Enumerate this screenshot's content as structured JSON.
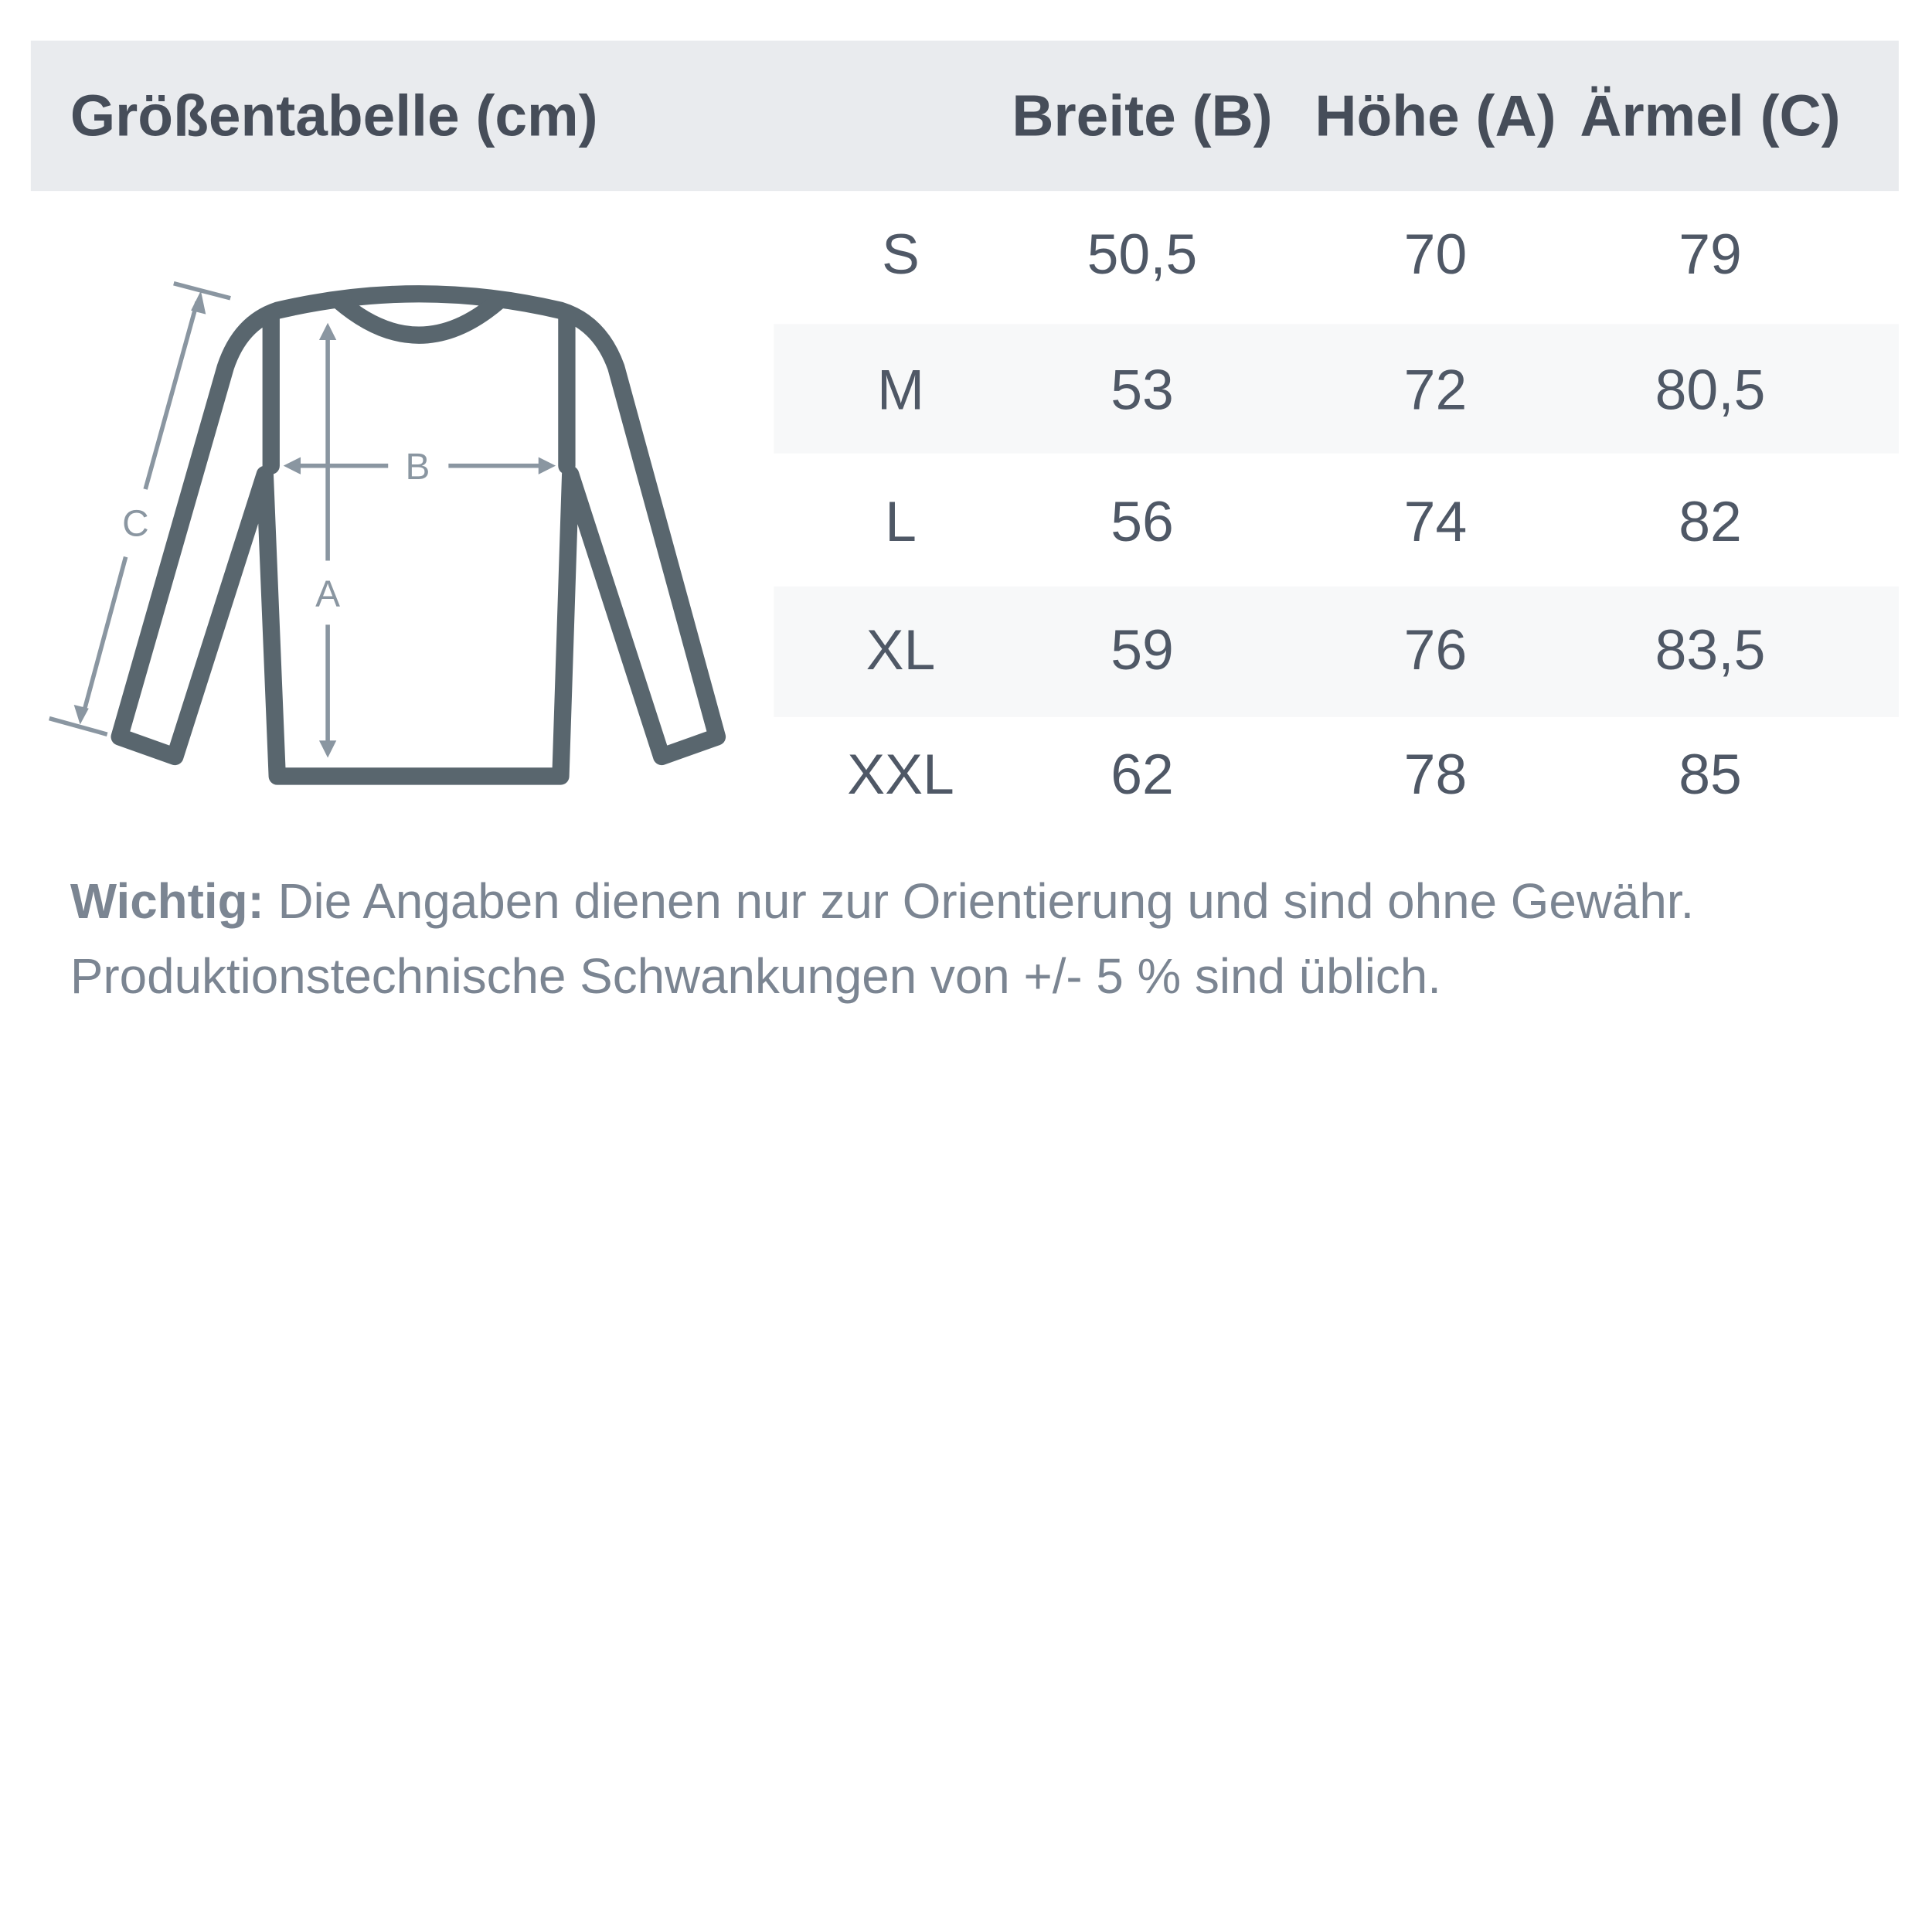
{
  "title": "Größentabelle (cm)",
  "columns": [
    "Breite (B)",
    "Höhe (A)",
    "Ärmel (C)"
  ],
  "rows": [
    {
      "size": "S",
      "values": [
        "50,5",
        "70",
        "79"
      ]
    },
    {
      "size": "M",
      "values": [
        "53",
        "72",
        "80,5"
      ]
    },
    {
      "size": "L",
      "values": [
        "56",
        "74",
        "82"
      ]
    },
    {
      "size": "XL",
      "values": [
        "59",
        "76",
        "83,5"
      ]
    },
    {
      "size": "XXL",
      "values": [
        "62",
        "78",
        "85"
      ]
    }
  ],
  "diagram": {
    "label_a": "A",
    "label_b": "B",
    "label_c": "C"
  },
  "note": {
    "bold": "Wichtig:",
    "line1": " Die Angaben dienen nur zur Orientierung und sind ohne Gewähr.",
    "line2": "Produktionstechnische Schwankungen von +/- 5 % sind üblich."
  },
  "colors": {
    "header_bg": "#e9ebee",
    "stripe_bg": "#f7f8f9",
    "outline": "#59666e",
    "dimension": "#8a96a1"
  }
}
